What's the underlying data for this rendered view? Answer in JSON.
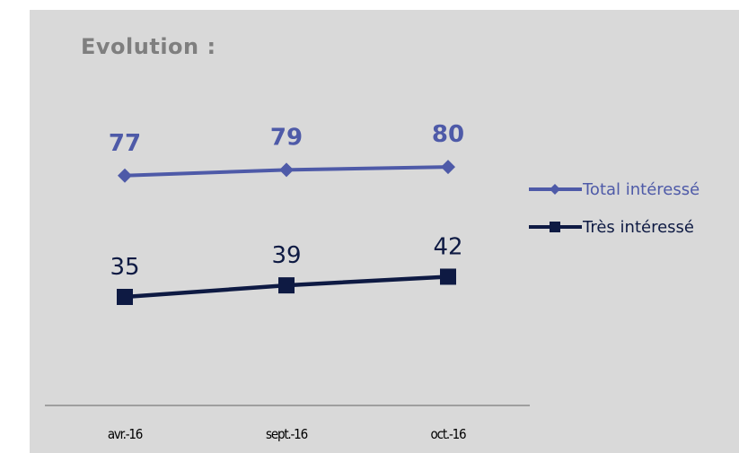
{
  "title": "Evolution :",
  "chart_data": {
    "type": "line",
    "categories": [
      "avr.-16",
      "sept.-16",
      "oct.-16"
    ],
    "series": [
      {
        "name": "Total intéressé",
        "values": [
          77,
          79,
          80
        ],
        "color": "#4e5aa8",
        "marker": "diamond",
        "label_style": "bold"
      },
      {
        "name": "Très intéressé",
        "values": [
          35,
          39,
          42
        ],
        "color": "#0e1a43",
        "marker": "square",
        "label_style": "normal"
      }
    ],
    "xlabel": "",
    "ylabel": "",
    "grid": false,
    "legend": "right"
  }
}
